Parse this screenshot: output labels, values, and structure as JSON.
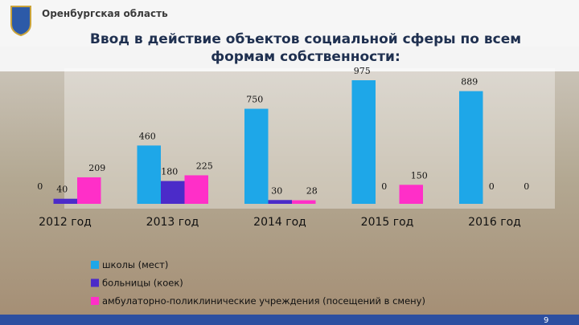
{
  "header": {
    "region": "Оренбургская область"
  },
  "chart_data": {
    "type": "bar",
    "title": "Ввод в действие объектов социальной сферы по всем формам собственности:",
    "categories": [
      "2012 год",
      "2013 год",
      "2014 год",
      "2015 год",
      "2016 год"
    ],
    "series": [
      {
        "name": "школы (мест)",
        "color": "#1ea7e8",
        "values": [
          0,
          460,
          750,
          975,
          889
        ]
      },
      {
        "name": "больницы (коек)",
        "color": "#4b2bc9",
        "values": [
          40,
          180,
          30,
          0,
          0
        ]
      },
      {
        "name": "амбулаторно-поликлинические учреждения (посещений в смену)",
        "color": "#ff2fc8",
        "values": [
          209,
          225,
          28,
          150,
          0
        ]
      }
    ]
  },
  "page_number": "9"
}
